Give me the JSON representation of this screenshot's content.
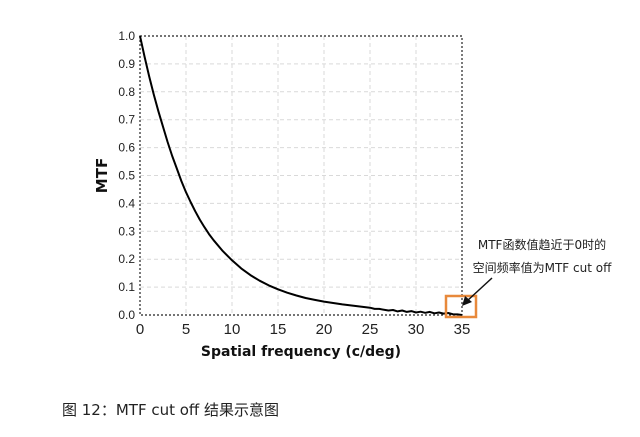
{
  "chart_data": {
    "type": "line",
    "title": "",
    "xlabel": "Spatial frequency (c/deg)",
    "ylabel": "MTF",
    "xlim": [
      0,
      35
    ],
    "ylim": [
      0,
      1.0
    ],
    "x_ticks": [
      "0",
      "5",
      "10",
      "15",
      "20",
      "25",
      "30",
      "35"
    ],
    "y_ticks": [
      "0.0",
      "0.1",
      "0.2",
      "0.3",
      "0.4",
      "0.5",
      "0.6",
      "0.7",
      "0.8",
      "0.9",
      "1.0"
    ],
    "grid": true,
    "series": [
      {
        "color": "#000000",
        "x": [
          0,
          0.5,
          1,
          1.5,
          2,
          2.5,
          3,
          3.5,
          4,
          4.5,
          5,
          5.5,
          6,
          6.5,
          7,
          7.5,
          8,
          9,
          10,
          11,
          12,
          13,
          14,
          15,
          16,
          17,
          18,
          19,
          20,
          21,
          22,
          23,
          24,
          25,
          25.5,
          26,
          27,
          27.5,
          28,
          28.5,
          29,
          29.5,
          30,
          30.5,
          31,
          31.5,
          32,
          32.5,
          33,
          33.5,
          34,
          34.5,
          35
        ],
        "y": [
          1.0,
          0.925,
          0.855,
          0.79,
          0.73,
          0.675,
          0.62,
          0.57,
          0.525,
          0.48,
          0.44,
          0.405,
          0.372,
          0.342,
          0.315,
          0.29,
          0.268,
          0.229,
          0.196,
          0.167,
          0.143,
          0.123,
          0.106,
          0.092,
          0.08,
          0.07,
          0.061,
          0.054,
          0.048,
          0.043,
          0.038,
          0.034,
          0.03,
          0.026,
          0.022,
          0.022,
          0.016,
          0.018,
          0.013,
          0.016,
          0.011,
          0.014,
          0.009,
          0.012,
          0.008,
          0.011,
          0.006,
          0.009,
          0.005,
          0.007,
          0.003,
          0.002,
          0.0
        ]
      }
    ]
  },
  "annotation": {
    "line1": "MTF函数值趋近于0时的",
    "line2": "空间频率值为MTF cut off",
    "highlight_color": "#e8893b"
  },
  "caption": "图 12：MTF cut off 结果示意图"
}
